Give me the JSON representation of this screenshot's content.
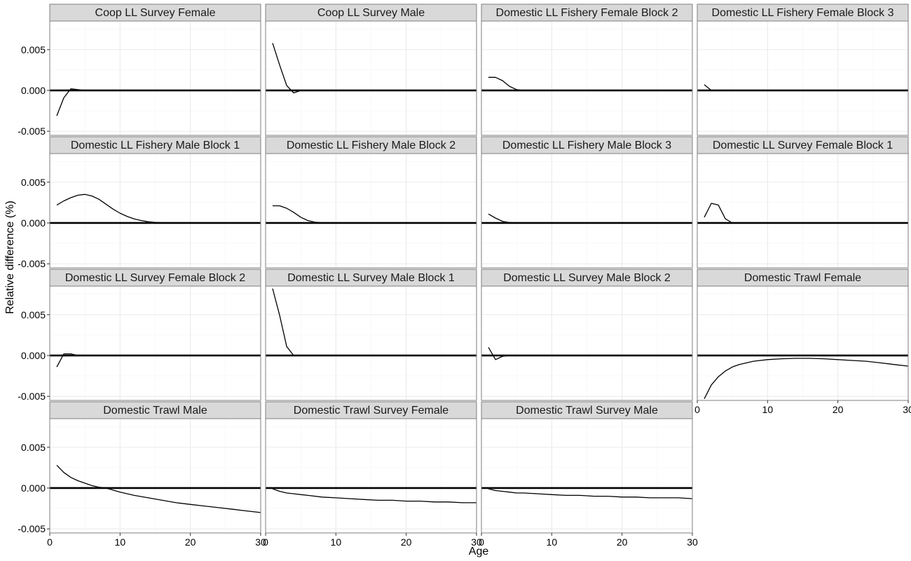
{
  "chart_data": {
    "type": "line",
    "layout": "facet_wrap",
    "ncol": 4,
    "xlabel": "Age",
    "ylabel": "Relative difference (%)",
    "xlim": [
      0,
      30
    ],
    "ylim": [
      -0.0055,
      0.0085
    ],
    "x_ticks": [
      0,
      10,
      20,
      30
    ],
    "x_tick_labels": [
      "0",
      "10",
      "20",
      "30"
    ],
    "y_ticks": [
      -0.005,
      0.0,
      0.005
    ],
    "y_tick_labels": [
      "-0.005",
      "0.000",
      "0.005"
    ],
    "reference_line": 0,
    "grid": true,
    "colors": {
      "line": "#000000",
      "strip_fill": "#d9d9d9",
      "strip_border": "#7f7f7f",
      "panel_border": "#7f7f7f",
      "grid_major": "#ebebeb",
      "grid_minor": "#f5f5f5",
      "text": "#1a1a1a"
    },
    "panels": [
      {
        "title": "Coop LL Survey Female",
        "x": [
          1,
          2,
          3,
          4,
          5
        ],
        "y": [
          -0.0031,
          -0.0009,
          0.0002,
          0.0001,
          0.0
        ]
      },
      {
        "title": "Coop LL Survey Male",
        "x": [
          1,
          2,
          3,
          4,
          5
        ],
        "y": [
          0.0058,
          0.0031,
          0.0006,
          -0.0003,
          0.0
        ]
      },
      {
        "title": "Domestic LL Fishery Female Block 2",
        "x": [
          1,
          2,
          3,
          4,
          5,
          6
        ],
        "y": [
          0.0016,
          0.0016,
          0.0012,
          0.0005,
          0.0001,
          0.0
        ]
      },
      {
        "title": "Domestic LL Fishery Female Block 3",
        "x": [
          1,
          2
        ],
        "y": [
          0.0007,
          0.0
        ]
      },
      {
        "title": "Domestic LL Fishery Male Block 1",
        "x": [
          1,
          2,
          3,
          4,
          5,
          6,
          7,
          8,
          9,
          10,
          11,
          12,
          13,
          14,
          15,
          16,
          17,
          18
        ],
        "y": [
          0.0022,
          0.0027,
          0.0031,
          0.0034,
          0.0035,
          0.0033,
          0.0029,
          0.0023,
          0.0017,
          0.0012,
          0.0008,
          0.0005,
          0.0003,
          0.00015,
          7e-05,
          3e-05,
          1e-05,
          0.0
        ]
      },
      {
        "title": "Domestic LL Fishery Male Block 2",
        "x": [
          1,
          2,
          3,
          4,
          5,
          6,
          7,
          8,
          9,
          10
        ],
        "y": [
          0.0021,
          0.0021,
          0.0018,
          0.0013,
          0.0007,
          0.0003,
          0.0001,
          3e-05,
          0.0,
          0.0
        ]
      },
      {
        "title": "Domestic LL Fishery Male Block 3",
        "x": [
          1,
          2,
          3,
          4,
          5,
          6
        ],
        "y": [
          0.0011,
          0.0006,
          0.0002,
          5e-05,
          0.0,
          0.0
        ]
      },
      {
        "title": "Domestic LL Survey Female Block 1",
        "x": [
          1,
          2,
          3,
          4,
          5
        ],
        "y": [
          0.0007,
          0.0024,
          0.0022,
          0.0005,
          0.0
        ]
      },
      {
        "title": "Domestic LL Survey Female Block 2",
        "x": [
          1,
          2,
          3,
          4
        ],
        "y": [
          -0.0014,
          0.0002,
          0.0002,
          0.0
        ]
      },
      {
        "title": "Domestic LL Survey Male Block 1",
        "x": [
          1,
          2,
          3,
          4
        ],
        "y": [
          0.0082,
          0.0049,
          0.0011,
          0.0
        ]
      },
      {
        "title": "Domestic LL Survey Male Block 2",
        "x": [
          1,
          2,
          3,
          4
        ],
        "y": [
          0.001,
          -0.0005,
          -0.0001,
          0.0
        ]
      },
      {
        "title": "Domestic Trawl Female",
        "x": [
          1,
          2,
          3,
          4,
          5,
          6,
          8,
          10,
          12,
          14,
          16,
          18,
          20,
          22,
          24,
          26,
          28,
          30
        ],
        "y": [
          -0.0053,
          -0.0036,
          -0.0026,
          -0.0019,
          -0.0014,
          -0.0011,
          -0.0007,
          -0.0005,
          -0.0004,
          -0.00035,
          -0.00035,
          -0.0004,
          -0.0005,
          -0.0006,
          -0.0007,
          -0.0009,
          -0.0011,
          -0.0013
        ]
      },
      {
        "title": "Domestic Trawl Male",
        "x": [
          1,
          2,
          3,
          4,
          5,
          6,
          7,
          8,
          10,
          12,
          14,
          16,
          18,
          20,
          22,
          24,
          26,
          28,
          30
        ],
        "y": [
          0.0028,
          0.0019,
          0.0013,
          0.0009,
          0.0006,
          0.0003,
          0.0001,
          0.0,
          -0.0005,
          -0.0009,
          -0.0012,
          -0.0015,
          -0.0018,
          -0.002,
          -0.0022,
          -0.0024,
          -0.0026,
          -0.0028,
          -0.003
        ]
      },
      {
        "title": "Domestic Trawl Survey Female",
        "x": [
          1,
          2,
          3,
          4,
          5,
          6,
          8,
          10,
          12,
          14,
          16,
          18,
          20,
          22,
          24,
          26,
          28,
          30
        ],
        "y": [
          -0.0001,
          -0.0004,
          -0.0006,
          -0.0007,
          -0.0008,
          -0.0009,
          -0.0011,
          -0.0012,
          -0.0013,
          -0.0014,
          -0.0015,
          -0.0015,
          -0.0016,
          -0.0016,
          -0.0017,
          -0.0017,
          -0.0018,
          -0.0018
        ]
      },
      {
        "title": "Domestic Trawl Survey Male",
        "x": [
          1,
          2,
          3,
          4,
          5,
          6,
          8,
          10,
          12,
          14,
          16,
          18,
          20,
          22,
          24,
          26,
          28,
          30
        ],
        "y": [
          -0.0001,
          -0.0003,
          -0.0004,
          -0.0005,
          -0.0006,
          -0.0006,
          -0.0007,
          -0.0008,
          -0.0009,
          -0.0009,
          -0.001,
          -0.001,
          -0.0011,
          -0.0011,
          -0.0012,
          -0.0012,
          -0.0012,
          -0.0013
        ]
      }
    ]
  }
}
